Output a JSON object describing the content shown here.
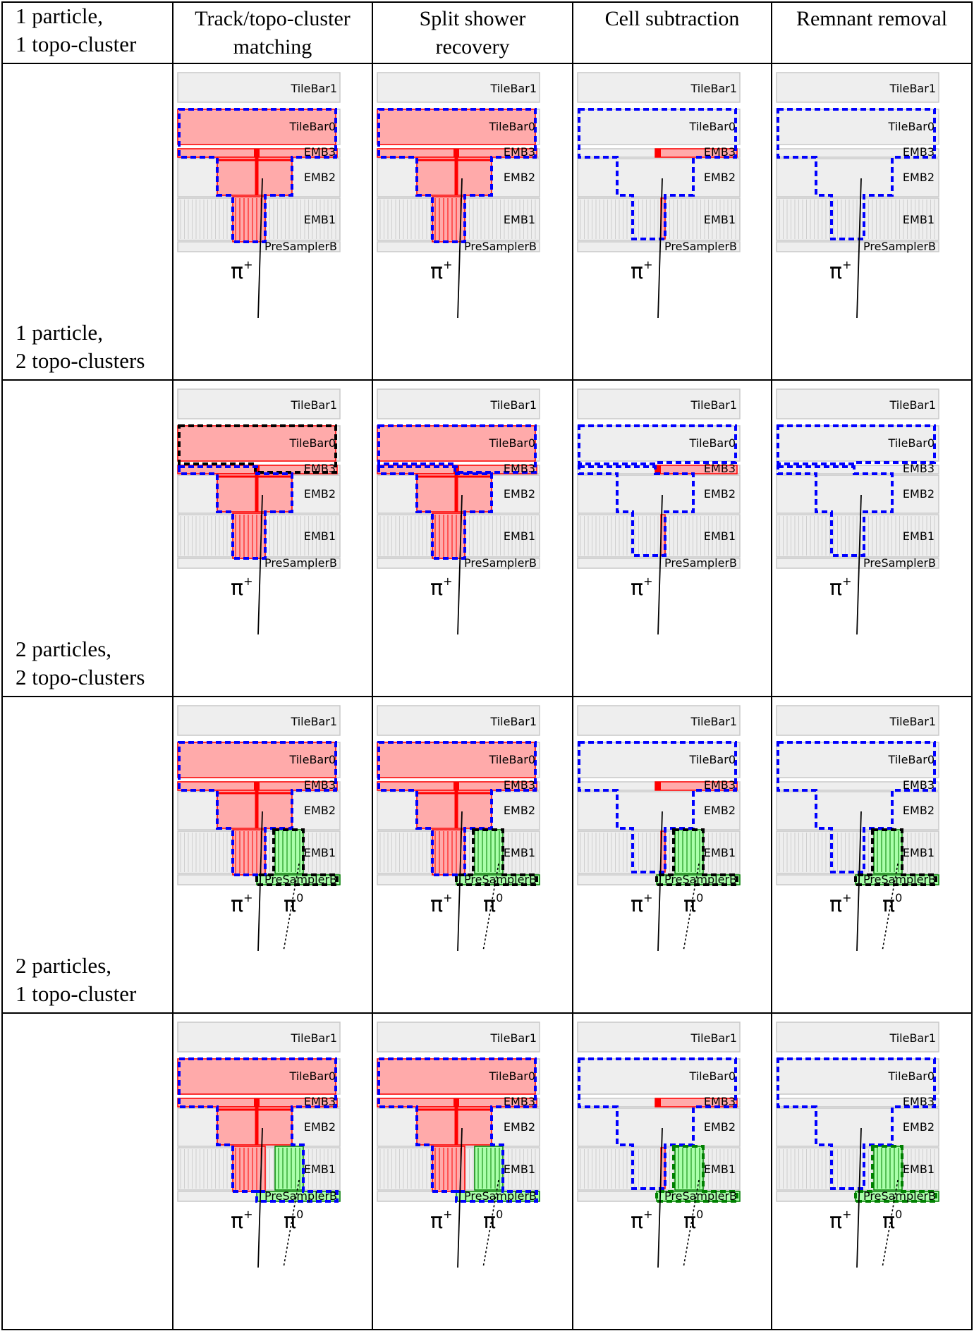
{
  "headers": [
    "",
    "Track/topo-cluster matching",
    "Split shower recovery",
    "Cell subtraction",
    "Remnant removal"
  ],
  "header_lines": [
    [],
    [
      "Track/topo-cluster",
      "matching"
    ],
    [
      "Split shower",
      "recovery"
    ],
    [
      "Cell subtraction"
    ],
    [
      "Remnant removal"
    ]
  ],
  "rows": [
    {
      "label_lines": [
        "1 particle,",
        "1 topo-cluster"
      ],
      "particles": [
        "π+"
      ],
      "clusters": 1
    },
    {
      "label_lines": [
        "1 particle,",
        "2 topo-clusters"
      ],
      "particles": [
        "π+"
      ],
      "clusters": 2
    },
    {
      "label_lines": [
        "2 particles,",
        "2 topo-clusters"
      ],
      "particles": [
        "π+",
        "π0"
      ],
      "clusters": 2
    },
    {
      "label_lines": [
        "2 particles,",
        "1 topo-cluster"
      ],
      "particles": [
        "π+",
        "π0"
      ],
      "clusters": 1
    }
  ],
  "layers": [
    "TileBar1",
    "TileBar0",
    "EMB3",
    "EMB2",
    "EMB1",
    "PreSamplerB"
  ],
  "particle_text": {
    "charged_base": "π",
    "charged_sup": "+",
    "neutral_base": "π",
    "neutral_sup": "0"
  },
  "colors": {
    "charged_energy": "#ffaaaa",
    "charged_core": "#ff0000",
    "neutral_energy": "#aaffaa",
    "neutral_edge": "#008000",
    "cluster_outline": "#0000ff",
    "second_cluster_outline": "#000000",
    "detector_cell": "#eeeeee",
    "detector_edge": "#c8c8c8",
    "grid": "#000000"
  }
}
